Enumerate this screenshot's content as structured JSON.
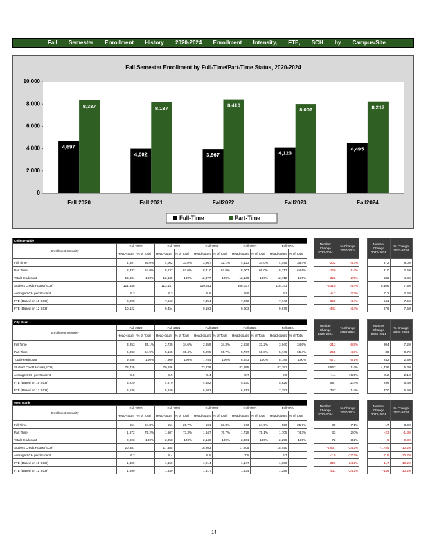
{
  "header": {
    "title": "Fall Semester Enrollment History 2020-2024 Enrollment Intensity, FTE, SCH by Campus/Site"
  },
  "chart_data": {
    "type": "bar",
    "title": "Fall Semester Enrollment by Full-Time/Part-Time Status, 2020-2024",
    "categories": [
      "Fall 2020",
      "Fall 2021",
      "Fall2022",
      "Fall2023",
      "Fall2024"
    ],
    "series": [
      {
        "name": "Full-Time",
        "color": "#000000",
        "values": [
          4697,
          4002,
          3967,
          4123,
          4495
        ],
        "value_labels": [
          "4,697",
          "4,002",
          "3,967",
          "4,123",
          "4,495"
        ]
      },
      {
        "name": "Part-Time",
        "color": "#2f5f23",
        "values": [
          8337,
          8137,
          8410,
          8007,
          8217
        ],
        "value_labels": [
          "8,337",
          "8,137",
          "8,410",
          "8,007",
          "8,217"
        ]
      }
    ],
    "ylim": [
      0,
      10000
    ],
    "yticks": [
      0,
      {
        "value": 2000,
        "label": "2,000"
      },
      {
        "value": 4000,
        "label": "4,000"
      },
      {
        "value": 6000,
        "label": "6,000"
      },
      {
        "value": 8000,
        "label": "8,000"
      },
      {
        "value": 10000,
        "label": "10,000"
      }
    ],
    "grid": false,
    "legend": "bottom"
  },
  "tables": {
    "row_header": "Enrollment Intensity",
    "headcount_label": "Head-count",
    "percent_label": "% of Total",
    "years": [
      "Fall 2020",
      "Fall 2021",
      "Fall 2022",
      "Fall 2023",
      "Fall 2024"
    ],
    "change_number_label": "Number Change",
    "change_percent_label": "% Change",
    "periods": [
      "2020-2024",
      "2023-2024"
    ],
    "row_labels": [
      "Full Time",
      "Part Time",
      "Total Headcount",
      "Student Credit Hours (SCH)",
      "Average SCH per Student",
      "FTE (Based on 15 SCH)",
      "FTE (Based on 12 SCH)"
    ],
    "sections": [
      {
        "name": "College-Wide",
        "rows": [
          [
            "4,697",
            "36.0%",
            "4,002",
            "33.0%",
            "3,967",
            "32.1%",
            "4,123",
            "34.0%",
            "4,495",
            "35.4%",
            "-202",
            "-4.3%",
            "372",
            "9.0%"
          ],
          [
            "8,337",
            "64.0%",
            "8,137",
            "67.0%",
            "8,410",
            "67.9%",
            "8,007",
            "66.0%",
            "8,217",
            "64.6%",
            "-120",
            "-1.4%",
            "210",
            "2.6%"
          ],
          [
            "13,034",
            "100%",
            "12,139",
            "100%",
            "12,377",
            "100%",
            "12,130",
            "100%",
            "12,712",
            "100%",
            "-322",
            "-2.5%",
            "582",
            "4.8%"
          ],
          [
            "121,458",
            "",
            "113,447",
            "",
            "110,311",
            "",
            "108,037",
            "",
            "116,143",
            "",
            "-5,315",
            "-4.4%",
            "8,106",
            "7.5%"
          ],
          [
            "9.3",
            "",
            "9.3",
            "",
            "8.9",
            "",
            "8.9",
            "",
            "9.1",
            "",
            "-0.2",
            "-2.2%",
            "0.2",
            "2.2%"
          ],
          [
            "8,098",
            "",
            "7,563",
            "",
            "7,354",
            "",
            "7,202",
            "",
            "7,743",
            "",
            "-355",
            "-4.4%",
            "541",
            "7.5%"
          ],
          [
            "10,122",
            "",
            "9,454",
            "",
            "9,193",
            "",
            "9,003",
            "",
            "9,679",
            "",
            "-443",
            "-4.4%",
            "676",
            "7.5%"
          ]
        ]
      },
      {
        "name": "City Park",
        "rows": [
          [
            "3,253",
            "35.1%",
            "2,735",
            "34.6%",
            "2,659",
            "34.3%",
            "2,836",
            "33.2%",
            "3,040",
            "34.6%",
            "-213",
            "-6.5%",
            "204",
            "7.2%"
          ],
          [
            "6,003",
            "64.9%",
            "5,165",
            "65.4%",
            "5,095",
            "65.7%",
            "5,707",
            "66.8%",
            "5,745",
            "65.4%",
            "-258",
            "-4.3%",
            "38",
            "0.7%"
          ],
          [
            "9,256",
            "100%",
            "7,900",
            "100%",
            "7,754",
            "100%",
            "8,543",
            "100%",
            "8,785",
            "100%",
            "-471",
            "-5.1%",
            "242",
            "2.8%"
          ],
          [
            "78,429",
            "",
            "70,186",
            "",
            "73,229",
            "",
            "82,955",
            "",
            "87,391",
            "",
            "8,962",
            "11.4%",
            "4,436",
            "5.3%"
          ],
          [
            "8.5",
            "",
            "8.9",
            "",
            "9.4",
            "",
            "9.7",
            "",
            "9.9",
            "",
            "1.4",
            "16.5%",
            "0.2",
            "2.1%"
          ],
          [
            "5,229",
            "",
            "4,679",
            "",
            "4,882",
            "",
            "5,530",
            "",
            "5,826",
            "",
            "597",
            "11.4%",
            "296",
            "5.4%"
          ],
          [
            "6,536",
            "",
            "5,849",
            "",
            "6,102",
            "",
            "6,913",
            "",
            "7,283",
            "",
            "747",
            "11.4%",
            "370",
            "5.4%"
          ]
        ]
      },
      {
        "name": "West Bank",
        "rows": [
          [
            "551",
            "24.8%",
            "551",
            "26.7%",
            "501",
            "23.3%",
            "573",
            "24.9%",
            "590",
            "25.7%",
            "39",
            "7.1%",
            "17",
            "3.0%"
          ],
          [
            "1,672",
            "75.2%",
            "1,507",
            "73.3%",
            "1,647",
            "76.7%",
            "1,728",
            "75.1%",
            "1,705",
            "74.3%",
            "33",
            "2.0%",
            "-23",
            "-1.3%"
          ],
          [
            "2,223",
            "100%",
            "2,058",
            "100%",
            "2,148",
            "100%",
            "2,301",
            "100%",
            "2,295",
            "100%",
            "72",
            "3.2%",
            "-6",
            "-0.3%"
          ],
          [
            "20,387",
            "",
            "17,385",
            "",
            "18,203",
            "",
            "17,205",
            "",
            "15,450",
            "",
            "-4,937",
            "-24.2%",
            "-1,755",
            "-10.2%"
          ],
          [
            "9.2",
            "",
            "8.4",
            "",
            "8.5",
            "",
            "7.5",
            "",
            "6.7",
            "",
            "-2.5",
            "-27.2%",
            "-0.8",
            "-10.7%"
          ],
          [
            "1,359",
            "",
            "1,159",
            "",
            "1,214",
            "",
            "1,147",
            "",
            "1,030",
            "",
            "-329",
            "-24.2%",
            "-117",
            "-10.2%"
          ],
          [
            "1,699",
            "",
            "1,449",
            "",
            "1,517",
            "",
            "1,434",
            "",
            "1,288",
            "",
            "-411",
            "-24.2%",
            "-146",
            "-10.2%"
          ]
        ]
      }
    ]
  },
  "footer": {
    "page_number": "14"
  }
}
